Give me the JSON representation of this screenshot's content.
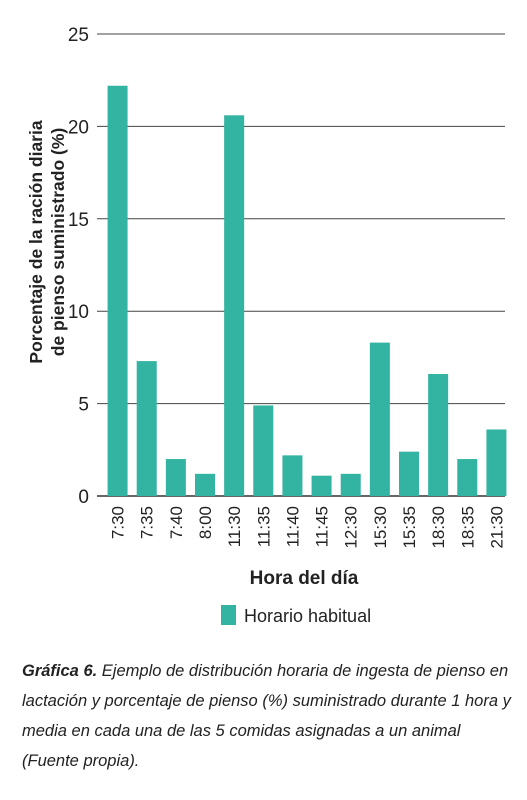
{
  "chart_data": {
    "type": "bar",
    "categories": [
      "7:30",
      "7:35",
      "7:40",
      "8:00",
      "11:30",
      "11:35",
      "11:40",
      "11:45",
      "12:30",
      "15:30",
      "15:35",
      "18:30",
      "18:35",
      "21:30"
    ],
    "series": [
      {
        "name": "Horario habitual",
        "values": [
          22.2,
          7.3,
          2.0,
          1.2,
          20.6,
          4.9,
          2.2,
          1.1,
          1.2,
          8.3,
          2.4,
          6.6,
          2.0,
          3.6
        ]
      }
    ],
    "xlabel": "Hora del día",
    "ylabel_lines": [
      "Porcentaje de la ración diaria",
      "de pienso suministrado (%)"
    ],
    "ylim": [
      0,
      25
    ],
    "yticks": [
      0,
      5,
      10,
      15,
      20,
      25
    ],
    "grid": true,
    "legend_position": "bottom",
    "bar_color": "#33b3a2"
  },
  "caption": {
    "label": "Gráfica 6.",
    "text": " Ejemplo de distribución horaria de ingesta de pienso en lactación y porcentaje de pienso (%) suministrado durante 1 hora y media en cada una de las 5 comidas asignadas a un animal (Fuente propia)."
  }
}
